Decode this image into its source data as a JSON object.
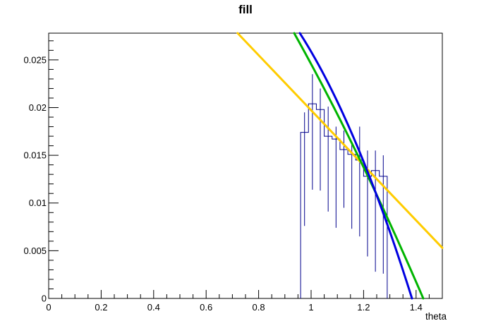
{
  "title": "fill",
  "background": "#ffffff",
  "frame_color": "#000000",
  "axes": {
    "x": {
      "label": "theta",
      "min": 0,
      "max": 1.5,
      "major_tick_values": [
        0,
        0.2,
        0.4,
        0.6,
        0.8,
        1,
        1.2,
        1.4
      ],
      "major_tick_labels": [
        "0",
        "0.2",
        "0.4",
        "0.6",
        "0.8",
        "1",
        "1.2",
        "1.4"
      ],
      "minor_step": 0.05
    },
    "y": {
      "label": "",
      "min": 0,
      "max": 0.0278,
      "major_tick_values": [
        0,
        0.005,
        0.01,
        0.015,
        0.02,
        0.025
      ],
      "major_tick_labels": [
        "0",
        "0.005",
        "0.01",
        "0.015",
        "0.02",
        "0.025"
      ],
      "minor_step": 0.001
    }
  },
  "chart_data": {
    "type": "bar",
    "subtype": "step-histogram-with-error-bars-and-fits",
    "title": "fill",
    "xlabel": "theta",
    "ylabel": "",
    "xlim": [
      0,
      1.5
    ],
    "ylim": [
      0,
      0.0278
    ],
    "grid": false,
    "legend": false,
    "histogram": {
      "color": "#00008c",
      "line_width": 1,
      "bin_edges": [
        0.96,
        0.99,
        1.02,
        1.05,
        1.08,
        1.11,
        1.14,
        1.17,
        1.2,
        1.23,
        1.26,
        1.29
      ],
      "bin_centers": [
        0.975,
        1.005,
        1.035,
        1.065,
        1.095,
        1.125,
        1.155,
        1.185,
        1.215,
        1.245,
        1.275
      ],
      "values": [
        0.0174,
        0.0204,
        0.0198,
        0.017,
        0.0167,
        0.0156,
        0.0151,
        0.0145,
        0.0128,
        0.0134,
        0.0128
      ],
      "error_bar_high": [
        0.0195,
        0.0235,
        0.022,
        0.0201,
        0.018,
        0.0176,
        0.0164,
        0.018,
        0.0155,
        0.0155,
        0.015
      ],
      "error_bar_low": [
        0.0076,
        0.0114,
        0.0113,
        0.0091,
        0.0074,
        0.0095,
        0.0073,
        0.0065,
        0.0044,
        0.0028,
        0.0026
      ]
    },
    "fit_curves": [
      {
        "name": "fit-yellow",
        "shape": "linear",
        "color": "#ffcc00",
        "line_width": 3,
        "points": [
          [
            0.72,
            0.0278
          ],
          [
            1.5,
            0.0053
          ]
        ]
      },
      {
        "name": "fit-green",
        "shape": "quadratic",
        "color": "#00b400",
        "line_width": 3,
        "points": [
          [
            0.9355,
            0.0278
          ],
          [
            1.199,
            0.0138
          ],
          [
            1.4274,
            0
          ]
        ]
      },
      {
        "name": "fit-blue",
        "shape": "quadratic",
        "color": "#0000e0",
        "line_width": 3,
        "points": [
          [
            0.957,
            0.0278
          ],
          [
            1.199,
            0.0144
          ],
          [
            1.3844,
            0
          ]
        ]
      }
    ]
  }
}
